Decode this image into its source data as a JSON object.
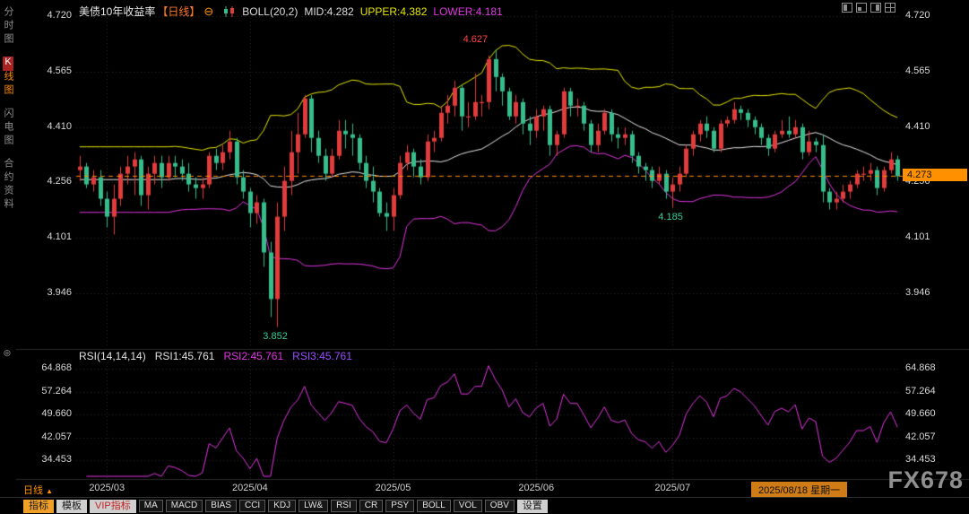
{
  "app": {
    "watermark": "FX678"
  },
  "icons": {
    "collapse": "⊖",
    "dropdown_up": "▲",
    "pane_marker": "◎"
  },
  "sidebar": {
    "items": [
      {
        "label": "分时图",
        "active": false
      },
      {
        "label": "K线图",
        "active": true
      },
      {
        "label": "闪电图",
        "active": false
      },
      {
        "label": "合约资料",
        "active": false
      }
    ]
  },
  "header": {
    "title": "美债10年收益率",
    "period_tag": "【日线】",
    "indicator": "BOLL(20,2)",
    "mid": "MID:4.282",
    "upper": "UPPER:4.382",
    "lower": "LOWER:4.181"
  },
  "rsi_header": {
    "name": "RSI(14,14,14)",
    "rsi1": "RSI1:45.761",
    "rsi2": "RSI2:45.761",
    "rsi3": "RSI3:45.761"
  },
  "toolbar": {
    "period_label": "日线",
    "tabs": [
      {
        "label": "指标",
        "style": "active"
      },
      {
        "label": "模板",
        "style": "normal"
      },
      {
        "label": "VIP指标",
        "style": "vip"
      }
    ],
    "indicators": [
      "MA",
      "MACD",
      "BIAS",
      "CCI",
      "KDJ",
      "LW&",
      "RSI",
      "CR",
      "PSY",
      "BOLL",
      "VOL",
      "OBV"
    ],
    "settings_label": "设置"
  },
  "colors": {
    "up": "#e03c3c",
    "down": "#36bd8b",
    "boll_upper": "#e8e800",
    "boll_mid": "#e8e8e8",
    "boll_lower": "#e236e2",
    "rsi_line": "#e236e2",
    "accent": "#ff9000",
    "grid": "#2e2e2e"
  },
  "chart_data": {
    "type": "candlestick",
    "title": "美债10年收益率 日线",
    "overlay_indicator": "BOLL(20,2)",
    "sub_indicator": "RSI(14,14,14)",
    "price_ticks": [
      "4.720",
      "4.565",
      "4.410",
      "4.256",
      "4.101",
      "3.946"
    ],
    "rsi_ticks": [
      "64.868",
      "57.264",
      "49.660",
      "42.057",
      "34.453"
    ],
    "x_labels": [
      {
        "text": "2025/03",
        "index": 4
      },
      {
        "text": "2025/04",
        "index": 25
      },
      {
        "text": "2025/05",
        "index": 46
      },
      {
        "text": "2025/06",
        "index": 67
      },
      {
        "text": "2025/07",
        "index": 87
      }
    ],
    "current_date_label": "2025/08/18 星期一",
    "last_price": "4.273",
    "boll": {
      "period": 20,
      "dev": 2,
      "mid": "4.282",
      "upper": "4.382",
      "lower": "4.181"
    },
    "rsi": {
      "params": "14,14,14",
      "rsi1": "45.761",
      "rsi2": "45.761",
      "rsi3": "45.761"
    },
    "annotations": [
      {
        "text": "4.627",
        "candle_index": 61,
        "color": "high"
      },
      {
        "text": "3.852",
        "candle_index": 29,
        "color": "low"
      },
      {
        "text": "4.185",
        "candle_index": 87,
        "color": "low"
      }
    ],
    "candles": [
      [
        4.29,
        4.33,
        4.26,
        4.3
      ],
      [
        4.3,
        4.31,
        4.24,
        4.25
      ],
      [
        4.25,
        4.29,
        4.23,
        4.27
      ],
      [
        4.27,
        4.29,
        4.19,
        4.21
      ],
      [
        4.21,
        4.23,
        4.13,
        4.16
      ],
      [
        4.16,
        4.25,
        4.11,
        4.21
      ],
      [
        4.21,
        4.3,
        4.19,
        4.28
      ],
      [
        4.28,
        4.33,
        4.25,
        4.3
      ],
      [
        4.3,
        4.34,
        4.22,
        4.32
      ],
      [
        4.32,
        4.33,
        4.19,
        4.22
      ],
      [
        4.22,
        4.3,
        4.18,
        4.28
      ],
      [
        4.28,
        4.33,
        4.25,
        4.31
      ],
      [
        4.31,
        4.33,
        4.24,
        4.27
      ],
      [
        4.27,
        4.33,
        4.26,
        4.31
      ],
      [
        4.31,
        4.33,
        4.27,
        4.3
      ],
      [
        4.3,
        4.32,
        4.26,
        4.28
      ],
      [
        4.28,
        4.31,
        4.23,
        4.25
      ],
      [
        4.25,
        4.27,
        4.21,
        4.24
      ],
      [
        4.24,
        4.27,
        4.21,
        4.25
      ],
      [
        4.25,
        4.34,
        4.24,
        4.33
      ],
      [
        4.33,
        4.35,
        4.29,
        4.31
      ],
      [
        4.31,
        4.36,
        4.29,
        4.34
      ],
      [
        4.34,
        4.4,
        4.32,
        4.37
      ],
      [
        4.37,
        4.38,
        4.25,
        4.27
      ],
      [
        4.27,
        4.29,
        4.21,
        4.23
      ],
      [
        4.23,
        4.24,
        4.13,
        4.17
      ],
      [
        4.17,
        4.22,
        4.14,
        4.2
      ],
      [
        4.2,
        4.21,
        4.02,
        4.06
      ],
      [
        4.06,
        4.09,
        3.88,
        3.93
      ],
      [
        3.93,
        4.2,
        3.852,
        4.16
      ],
      [
        4.16,
        4.3,
        4.12,
        4.26
      ],
      [
        4.26,
        4.4,
        4.22,
        4.34
      ],
      [
        4.34,
        4.45,
        4.28,
        4.39
      ],
      [
        4.39,
        4.5,
        4.38,
        4.49
      ],
      [
        4.49,
        4.5,
        4.34,
        4.38
      ],
      [
        4.38,
        4.4,
        4.31,
        4.33
      ],
      [
        4.33,
        4.35,
        4.26,
        4.28
      ],
      [
        4.28,
        4.35,
        4.27,
        4.33
      ],
      [
        4.33,
        4.43,
        4.32,
        4.4
      ],
      [
        4.4,
        4.43,
        4.35,
        4.39
      ],
      [
        4.39,
        4.42,
        4.33,
        4.38
      ],
      [
        4.38,
        4.39,
        4.29,
        4.31
      ],
      [
        4.31,
        4.33,
        4.24,
        4.26
      ],
      [
        4.26,
        4.3,
        4.2,
        4.23
      ],
      [
        4.23,
        4.24,
        4.16,
        4.17
      ],
      [
        4.17,
        4.2,
        4.12,
        4.16
      ],
      [
        4.16,
        4.24,
        4.12,
        4.22
      ],
      [
        4.22,
        4.33,
        4.21,
        4.31
      ],
      [
        4.31,
        4.36,
        4.29,
        4.34
      ],
      [
        4.34,
        4.35,
        4.27,
        4.3
      ],
      [
        4.3,
        4.32,
        4.25,
        4.27
      ],
      [
        4.27,
        4.39,
        4.26,
        4.37
      ],
      [
        4.37,
        4.4,
        4.34,
        4.38
      ],
      [
        4.38,
        4.47,
        4.37,
        4.45
      ],
      [
        4.45,
        4.5,
        4.42,
        4.47
      ],
      [
        4.47,
        4.54,
        4.44,
        4.52
      ],
      [
        4.52,
        4.53,
        4.4,
        4.44
      ],
      [
        4.44,
        4.48,
        4.41,
        4.44
      ],
      [
        4.44,
        4.56,
        4.43,
        4.48
      ],
      [
        4.48,
        4.5,
        4.44,
        4.48
      ],
      [
        4.48,
        4.61,
        4.46,
        4.6
      ],
      [
        4.6,
        4.627,
        4.51,
        4.55
      ],
      [
        4.55,
        4.56,
        4.47,
        4.51
      ],
      [
        4.51,
        4.52,
        4.43,
        4.44
      ],
      [
        4.44,
        4.5,
        4.42,
        4.48
      ],
      [
        4.48,
        4.49,
        4.39,
        4.42
      ],
      [
        4.42,
        4.44,
        4.36,
        4.4
      ],
      [
        4.4,
        4.46,
        4.38,
        4.44
      ],
      [
        4.44,
        4.47,
        4.4,
        4.46
      ],
      [
        4.46,
        4.47,
        4.33,
        4.36
      ],
      [
        4.36,
        4.4,
        4.33,
        4.39
      ],
      [
        4.39,
        4.52,
        4.38,
        4.51
      ],
      [
        4.51,
        4.52,
        4.44,
        4.47
      ],
      [
        4.47,
        4.49,
        4.44,
        4.47
      ],
      [
        4.47,
        4.48,
        4.4,
        4.42
      ],
      [
        4.42,
        4.43,
        4.34,
        4.36
      ],
      [
        4.36,
        4.42,
        4.34,
        4.4
      ],
      [
        4.4,
        4.46,
        4.39,
        4.45
      ],
      [
        4.45,
        4.46,
        4.37,
        4.39
      ],
      [
        4.39,
        4.41,
        4.35,
        4.38
      ],
      [
        4.38,
        4.41,
        4.36,
        4.39
      ],
      [
        4.39,
        4.4,
        4.31,
        4.33
      ],
      [
        4.33,
        4.34,
        4.28,
        4.3
      ],
      [
        4.3,
        4.31,
        4.26,
        4.29
      ],
      [
        4.29,
        4.3,
        4.24,
        4.26
      ],
      [
        4.26,
        4.3,
        4.25,
        4.28
      ],
      [
        4.28,
        4.29,
        4.21,
        4.23
      ],
      [
        4.23,
        4.27,
        4.185,
        4.25
      ],
      [
        4.25,
        4.3,
        4.23,
        4.28
      ],
      [
        4.28,
        4.36,
        4.27,
        4.35
      ],
      [
        4.35,
        4.4,
        4.33,
        4.39
      ],
      [
        4.39,
        4.43,
        4.37,
        4.42
      ],
      [
        4.42,
        4.44,
        4.38,
        4.4
      ],
      [
        4.4,
        4.41,
        4.34,
        4.35
      ],
      [
        4.35,
        4.43,
        4.34,
        4.42
      ],
      [
        4.42,
        4.44,
        4.41,
        4.43
      ],
      [
        4.43,
        4.48,
        4.42,
        4.46
      ],
      [
        4.46,
        4.47,
        4.43,
        4.45
      ],
      [
        4.45,
        4.46,
        4.41,
        4.43
      ],
      [
        4.43,
        4.44,
        4.39,
        4.41
      ],
      [
        4.41,
        4.42,
        4.36,
        4.38
      ],
      [
        4.38,
        4.39,
        4.33,
        4.35
      ],
      [
        4.35,
        4.4,
        4.34,
        4.39
      ],
      [
        4.39,
        4.43,
        4.38,
        4.4
      ],
      [
        4.4,
        4.44,
        4.38,
        4.39
      ],
      [
        4.39,
        4.43,
        4.38,
        4.41
      ],
      [
        4.41,
        4.42,
        4.32,
        4.34
      ],
      [
        4.34,
        4.4,
        4.33,
        4.37
      ],
      [
        4.37,
        4.38,
        4.34,
        4.36
      ],
      [
        4.36,
        4.39,
        4.2,
        4.23
      ],
      [
        4.23,
        4.24,
        4.18,
        4.2
      ],
      [
        4.2,
        4.23,
        4.18,
        4.21
      ],
      [
        4.21,
        4.25,
        4.2,
        4.23
      ],
      [
        4.23,
        4.26,
        4.21,
        4.25
      ],
      [
        4.25,
        4.29,
        4.24,
        4.28
      ],
      [
        4.28,
        4.3,
        4.26,
        4.28
      ],
      [
        4.28,
        4.31,
        4.26,
        4.29
      ],
      [
        4.29,
        4.3,
        4.22,
        4.24
      ],
      [
        4.24,
        4.3,
        4.23,
        4.29
      ],
      [
        4.29,
        4.34,
        4.28,
        4.32
      ],
      [
        4.32,
        4.33,
        4.26,
        4.273
      ]
    ]
  }
}
